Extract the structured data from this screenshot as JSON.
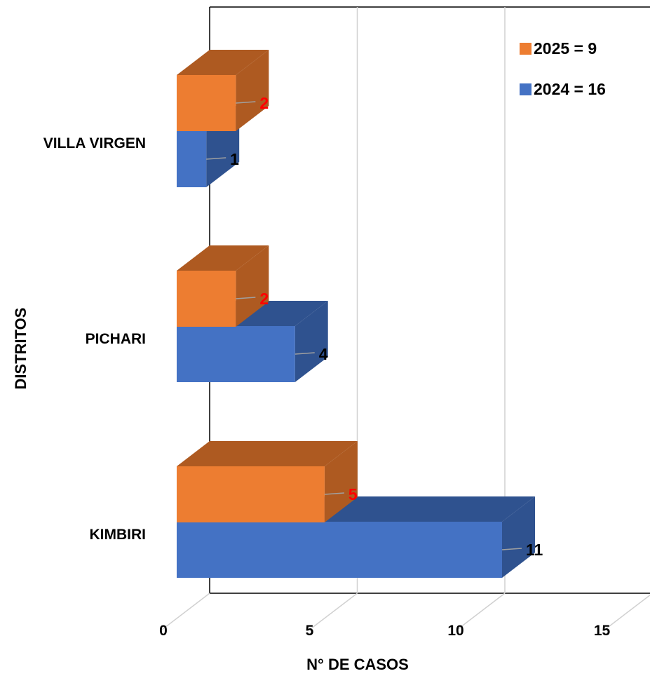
{
  "chart_data": {
    "type": "bar",
    "orientation": "horizontal",
    "three_d": true,
    "categories": [
      "VILLA VIRGEN",
      "PICHARI",
      "KIMBIRI"
    ],
    "series": [
      {
        "name": "2025 = 9",
        "values": [
          2,
          2,
          5
        ],
        "color": "#ED7D31",
        "side_color": "#AE5A21",
        "label_color": "#FF0000"
      },
      {
        "name": "2024 = 16",
        "values": [
          1,
          4,
          11
        ],
        "color": "#4472C4",
        "side_color": "#2F528F",
        "label_color": "#000000"
      }
    ],
    "x_ticks": [
      "0",
      "5",
      "10",
      "15"
    ],
    "xlim": [
      0,
      15
    ],
    "xlabel": "N° DE CASOS",
    "ylabel": "DISTRITOS",
    "grid": true,
    "legend_position": "top-right"
  }
}
